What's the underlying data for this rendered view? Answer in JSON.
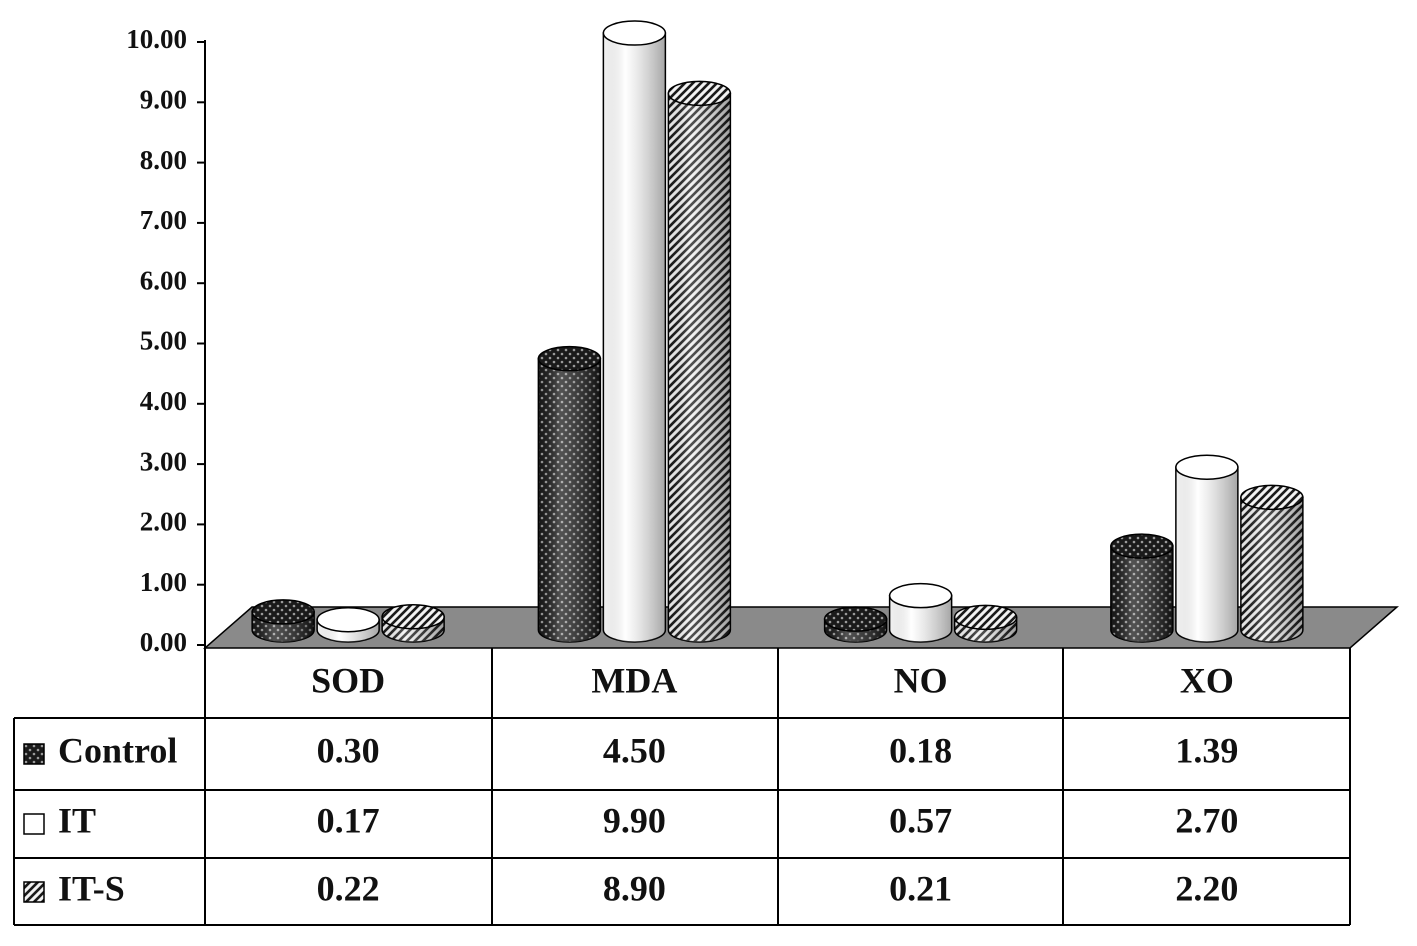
{
  "chart_data": {
    "type": "bar",
    "categories": [
      "SOD",
      "MDA",
      "NO",
      "XO"
    ],
    "series": [
      {
        "name": "Control",
        "color": "#1a1a1a",
        "pattern": "dots",
        "values": [
          0.3,
          4.5,
          0.18,
          1.39
        ],
        "value_labels": [
          "0.30",
          "4.50",
          "0.18",
          "1.39"
        ]
      },
      {
        "name": "IT",
        "color": "#ffffff",
        "pattern": "solid",
        "values": [
          0.17,
          9.9,
          0.57,
          2.7
        ],
        "value_labels": [
          "0.17",
          "9.90",
          "0.57",
          "2.70"
        ]
      },
      {
        "name": "IT-S",
        "color": "#1a1a1a",
        "pattern": "hatch",
        "values": [
          0.22,
          8.9,
          0.21,
          2.2
        ],
        "value_labels": [
          "0.22",
          "8.90",
          "0.21",
          "2.20"
        ]
      }
    ],
    "ylim": [
      0,
      10
    ],
    "yticks": [
      {
        "value": 0,
        "label": "0.00"
      },
      {
        "value": 1,
        "label": "1.00"
      },
      {
        "value": 2,
        "label": "2.00"
      },
      {
        "value": 3,
        "label": "3.00"
      },
      {
        "value": 4,
        "label": "4.00"
      },
      {
        "value": 5,
        "label": "5.00"
      },
      {
        "value": 6,
        "label": "6.00"
      },
      {
        "value": 7,
        "label": "7.00"
      },
      {
        "value": 8,
        "label": "8.00"
      },
      {
        "value": 9,
        "label": "9.00"
      },
      {
        "value": 10,
        "label": "10.00"
      }
    ]
  }
}
